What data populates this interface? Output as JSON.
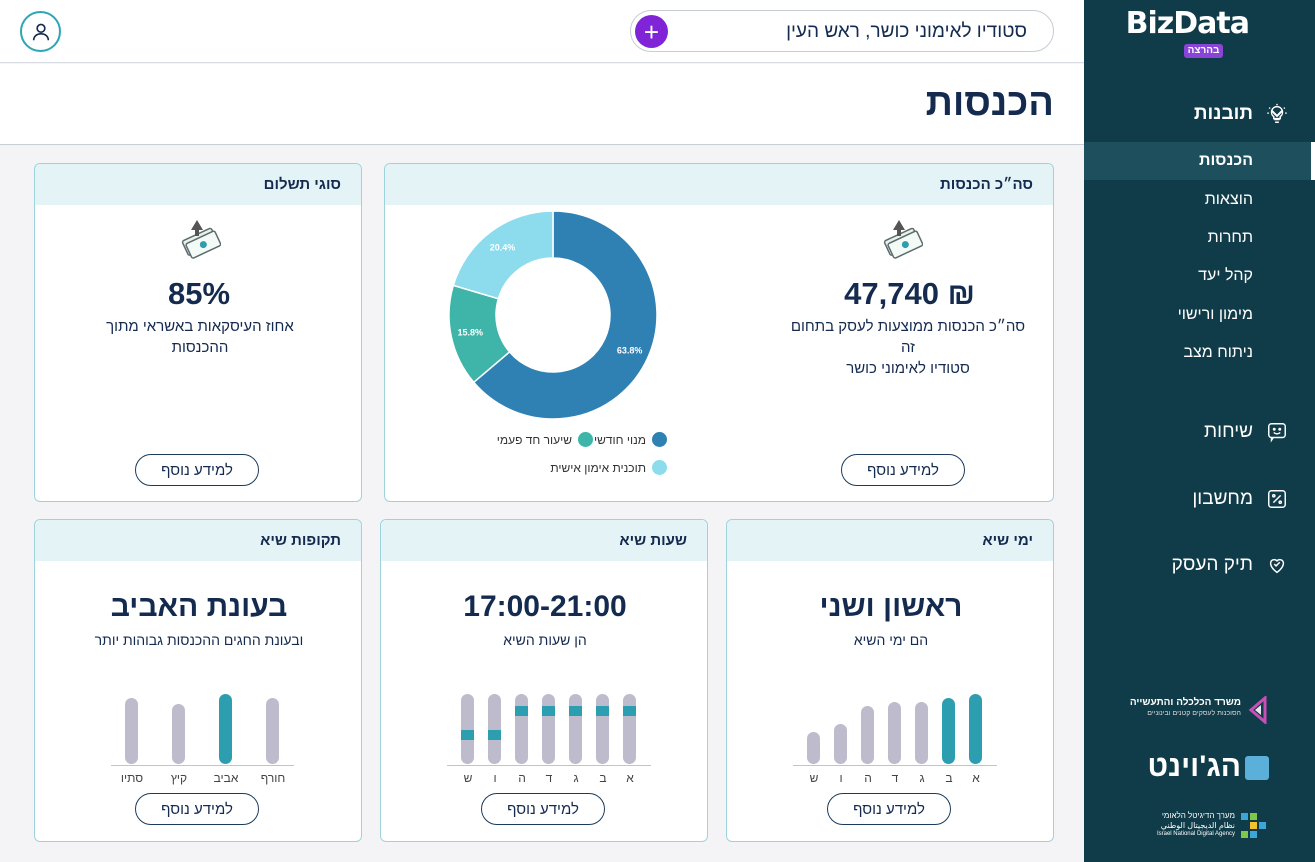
{
  "app": {
    "logo": "BizData",
    "logo_badge": "בהרצה"
  },
  "header": {
    "business_name": "סטודיו לאימוני כושר, ראש העין",
    "add_label": "+"
  },
  "page": {
    "title": "הכנסות"
  },
  "sidebar": {
    "section_insights": "תובנות",
    "items": [
      {
        "label": "הכנסות"
      },
      {
        "label": "הוצאות"
      },
      {
        "label": "תחרות"
      },
      {
        "label": "קהל יעד"
      },
      {
        "label": "מימון ורישוי"
      },
      {
        "label": "ניתוח מצב"
      }
    ],
    "section_chats": "שיחות",
    "section_calculator": "מחשבון",
    "section_portfolio": "תיק העסק",
    "sponsor1_line1": "משרד הכלכלה והתעשייה",
    "sponsor1_line2": "הסוכנות לעסקים קטנים ובינוניים",
    "sponsor2": "הג'וינט",
    "sponsor3_line1": "מערך הדיגיטל הלאומי",
    "sponsor3_line2": "نظام الديجيتال الوطني",
    "sponsor3_line3": "Israel National Digital Agency"
  },
  "cards": {
    "total": {
      "title": "סה״כ הכנסות",
      "value": "47,740 ₪",
      "desc_line1": "סה״כ הכנסות ממוצעות לעסק בתחום זה",
      "desc_line2": "סטודיו לאימוני כושר",
      "more": "למידע נוסף"
    },
    "payment": {
      "title": "סוגי תשלום",
      "value": "85%",
      "desc_line1": "אחוז העיסקאות באשראי מתוך",
      "desc_line2": "ההכנסות",
      "more": "למידע נוסף"
    },
    "peak_days": {
      "title": "ימי שיא",
      "value": "ראשון ושני",
      "desc": "הם ימי השיא",
      "more": "למידע נוסף",
      "labels": [
        "א",
        "ב",
        "ג",
        "ד",
        "ה",
        "ו",
        "ש"
      ]
    },
    "peak_hours": {
      "title": "שעות שיא",
      "value": "17:00-21:00",
      "desc": "הן שעות השיא",
      "more": "למידע נוסף",
      "labels": [
        "א",
        "ב",
        "ג",
        "ד",
        "ה",
        "ו",
        "ש"
      ]
    },
    "peak_seasons": {
      "title": "תקופות שיא",
      "value": "בעונת האביב",
      "desc": "ובעונת החגים ההכנסות גבוהות יותר",
      "more": "למידע נוסף",
      "labels": [
        "חורף",
        "אביב",
        "קיץ",
        "סתיו"
      ]
    }
  },
  "chart_data": {
    "type": "pie",
    "title": "סה״כ הכנסות",
    "categories": [
      "מנוי חודשי",
      "שיעור חד פעמי",
      "תוכנית אימון אישית"
    ],
    "values": [
      63.8,
      15.8,
      20.4
    ],
    "value_labels": [
      "63.8%",
      "15.8%",
      "20.4%"
    ],
    "colors": [
      "#2f80b3",
      "#3eb5a8",
      "#8cdcee"
    ],
    "donut": true
  },
  "colors": {
    "sidebar": "#103b48",
    "accent": "#2d9eaf",
    "purple": "#8024d8",
    "navy": "#142a4f"
  }
}
